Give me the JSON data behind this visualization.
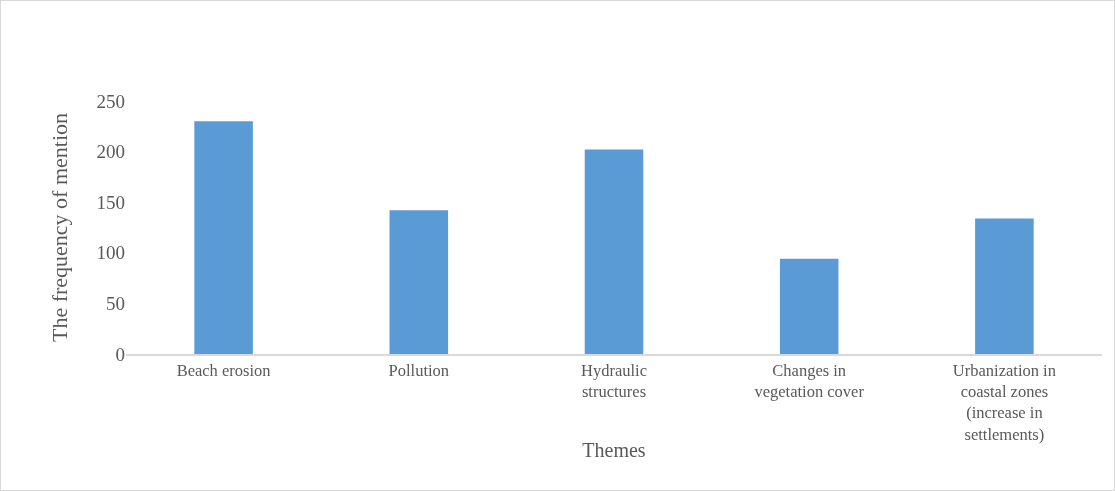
{
  "chart_data": {
    "type": "bar",
    "xlabel": "Themes",
    "ylabel": "The frequency of mention",
    "categories": [
      "Beach erosion",
      "Pollution",
      "Hydraulic structures",
      "Changes in vegetation cover",
      "Urbanization in coastal zones (increase in settlements)"
    ],
    "values": [
      230,
      142,
      202,
      94,
      134
    ],
    "color": "#5b9bd5",
    "ylim": [
      0,
      250
    ],
    "yticks": [
      0,
      50,
      100,
      150,
      200,
      250
    ],
    "grid": false
  }
}
